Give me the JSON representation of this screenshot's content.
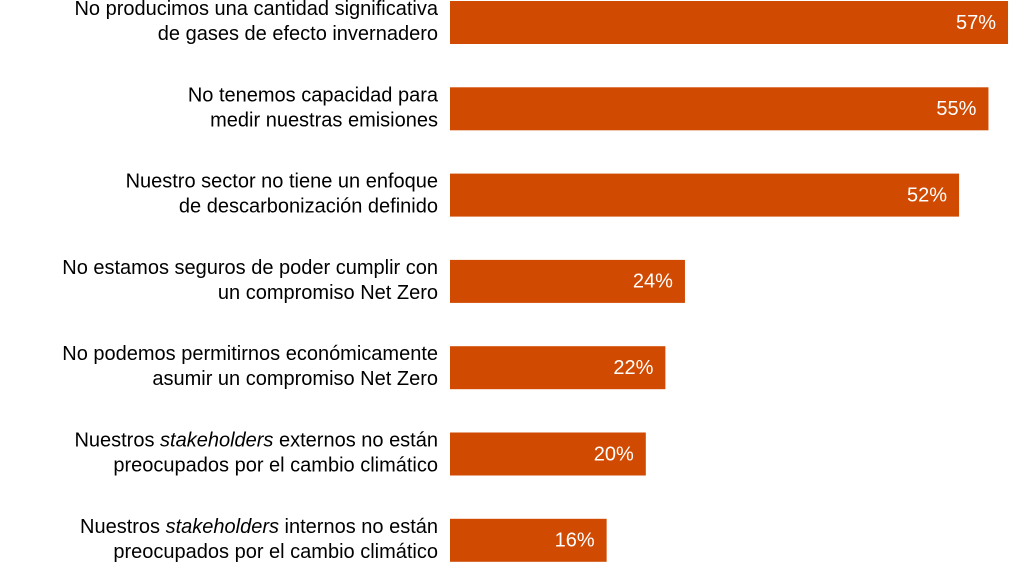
{
  "chart_data": {
    "type": "bar",
    "orientation": "horizontal",
    "color": "#d04a02",
    "categories": [
      [
        [
          "No producimos una cantidad significativa"
        ],
        [
          "de gases de efecto invernadero"
        ]
      ],
      [
        [
          "No tenemos capacidad para"
        ],
        [
          "medir nuestras emisiones"
        ]
      ],
      [
        [
          "Nuestro sector no tiene un enfoque"
        ],
        [
          "de descarbonización definido"
        ]
      ],
      [
        [
          "No estamos seguros de poder cumplir con"
        ],
        [
          "un compromiso Net Zero"
        ]
      ],
      [
        [
          "No podemos permitirnos económicamente"
        ],
        [
          "asumir un compromiso Net Zero"
        ]
      ],
      [
        [
          "Nuestros ",
          "stakeholders",
          " externos no están"
        ],
        [
          "preocupados por el cambio climático"
        ]
      ],
      [
        [
          "Nuestros ",
          "stakeholders",
          " internos no están"
        ],
        [
          "preocupados por el cambio climático"
        ]
      ]
    ],
    "values": [
      57,
      55,
      52,
      24,
      22,
      20,
      16
    ],
    "value_labels": [
      "57%",
      "55%",
      "52%",
      "24%",
      "22%",
      "20%",
      "16%"
    ]
  }
}
